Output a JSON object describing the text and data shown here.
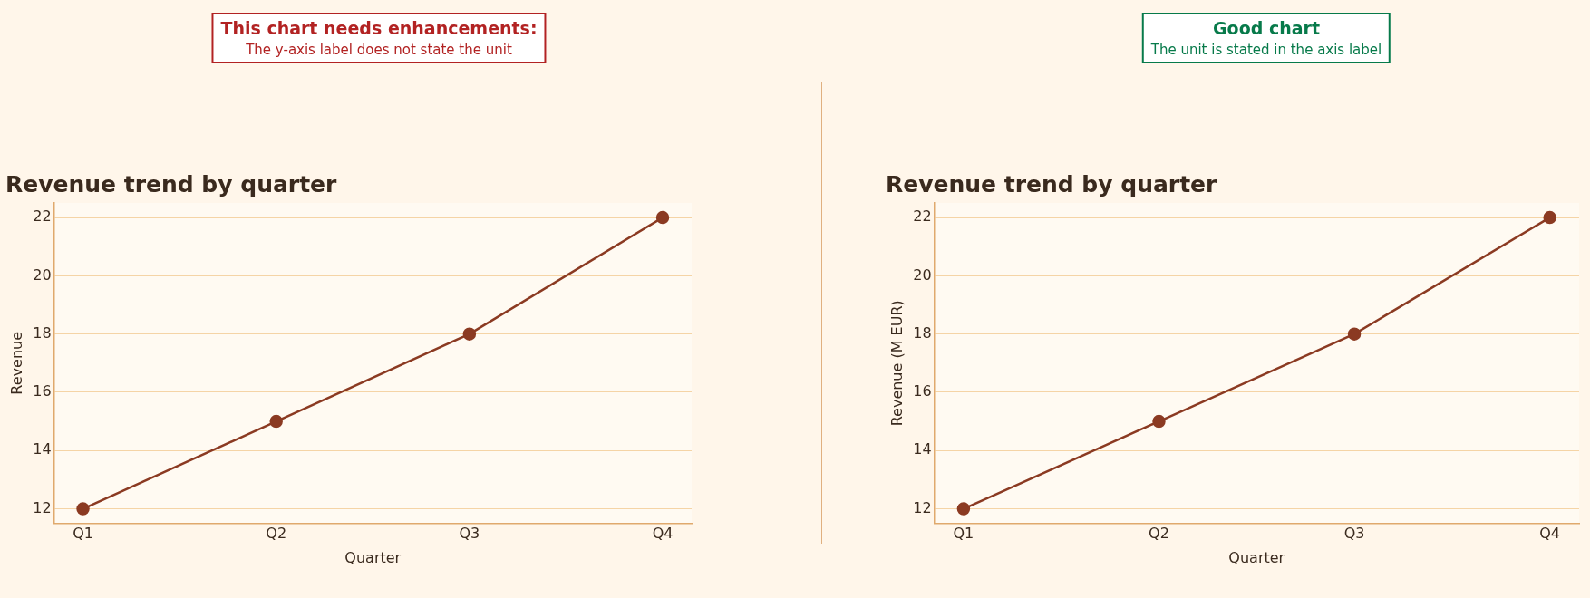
{
  "chart_data": [
    {
      "type": "line",
      "title": "Revenue trend by quarter",
      "xlabel": "Quarter",
      "ylabel": "Revenue",
      "categories": [
        "Q1",
        "Q2",
        "Q3",
        "Q4"
      ],
      "series": [
        {
          "color": "#8b3a22",
          "values": [
            12,
            15,
            18,
            22
          ]
        }
      ],
      "ylim": [
        11.5,
        22.5
      ],
      "yticks": [
        12,
        14,
        16,
        18,
        20,
        22
      ],
      "grid": "y",
      "legend": false,
      "marker": "circle",
      "line_style": "solid",
      "annotations": [
        "This chart needs enhancements:",
        "The y-axis label does not state the unit"
      ]
    },
    {
      "type": "line",
      "title": "Revenue trend by quarter",
      "xlabel": "Quarter",
      "ylabel": "Revenue (M EUR)",
      "categories": [
        "Q1",
        "Q2",
        "Q3",
        "Q4"
      ],
      "series": [
        {
          "color": "#8b3a22",
          "values": [
            12,
            15,
            18,
            22
          ]
        }
      ],
      "ylim": [
        11.5,
        22.5
      ],
      "yticks": [
        12,
        14,
        16,
        18,
        20,
        22
      ],
      "grid": "y",
      "legend": false,
      "marker": "circle",
      "line_style": "solid",
      "annotations": [
        "Good chart",
        "The unit is stated in the axis label"
      ]
    }
  ]
}
